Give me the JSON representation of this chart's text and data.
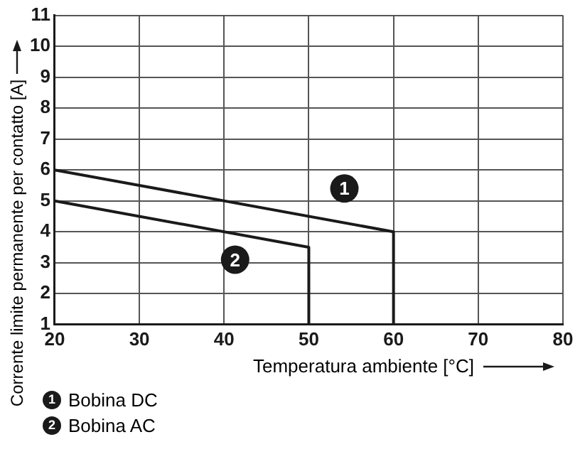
{
  "chart_data": {
    "type": "line",
    "xlabel": "Temperatura ambiente [°C]",
    "ylabel": "Corrente limite permanente per contatto [A]",
    "series": [
      {
        "name": "Bobina DC",
        "color": "#1a1a1a",
        "x": [
          20,
          60,
          60
        ],
        "values": [
          6,
          4,
          1
        ]
      },
      {
        "name": "Bobina AC",
        "color": "#1a1a1a",
        "x": [
          20,
          50,
          50
        ],
        "values": [
          5,
          3.5,
          1
        ]
      }
    ],
    "annotations": [
      {
        "text": "1",
        "x": 54.2,
        "y": 5.4
      },
      {
        "text": "2",
        "x": 41.3,
        "y": 3.1
      }
    ],
    "xlim": [
      20,
      80
    ],
    "xticks": [
      20,
      30,
      40,
      50,
      60,
      70,
      80
    ],
    "ylim": [
      1,
      11
    ],
    "yticks": [
      1,
      2,
      3,
      4,
      5,
      6,
      7,
      8,
      9,
      10,
      11
    ],
    "grid": true,
    "legend": "bottom",
    "marker": "none",
    "line_style": "solid"
  }
}
